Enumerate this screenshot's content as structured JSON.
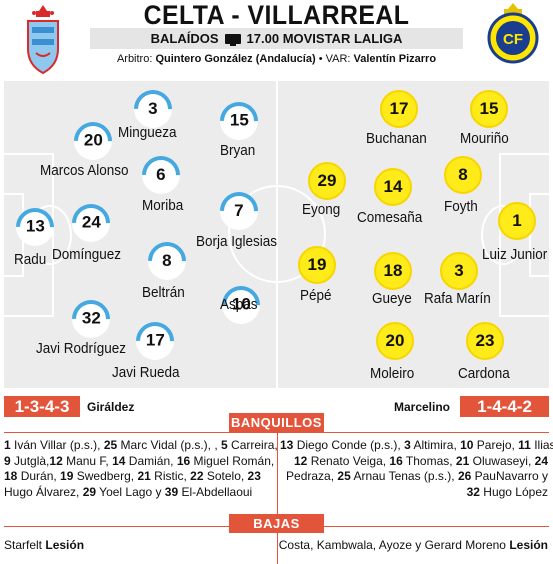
{
  "header": {
    "title": "CELTA - VILLARREAL",
    "venue": "BALAÍDOS",
    "broadcast": "17.00 MOVISTAR LALIGA",
    "referee_label": "Arbitro:",
    "referee_name": "Quintero González",
    "referee_region": "(Andalucía)",
    "var_label": "• VAR:",
    "var_name": "Valentín Pizarro"
  },
  "colors": {
    "home": "#46a8e0",
    "away": "#ffea1a",
    "accent": "#e3553b",
    "pitch": "#ececec"
  },
  "icons": {
    "home_crest": "celta-crest-icon",
    "away_crest": "villarreal-crest-icon",
    "tv": "tv-icon"
  },
  "home": {
    "formation": "1-3-4-3",
    "coach": "Giráldez",
    "players": [
      {
        "number": "3",
        "name": "Mingueza"
      },
      {
        "number": "15",
        "name": "Bryan"
      },
      {
        "number": "20",
        "name": "Marcos Alonso"
      },
      {
        "number": "6",
        "name": "Moriba"
      },
      {
        "number": "13",
        "name": "Radu"
      },
      {
        "number": "24",
        "name": "Domínguez"
      },
      {
        "number": "7",
        "name": "Borja Iglesias"
      },
      {
        "number": "8",
        "name": "Beltrán"
      },
      {
        "number": "10",
        "name": "Aspas"
      },
      {
        "number": "32",
        "name": "Javi Rodríguez"
      },
      {
        "number": "17",
        "name": "Javi Rueda"
      }
    ]
  },
  "away": {
    "formation": "1-4-4-2",
    "coach": "Marcelino",
    "players": [
      {
        "number": "17",
        "name": "Buchanan"
      },
      {
        "number": "15",
        "name": "Mouriño"
      },
      {
        "number": "29",
        "name": "Eyong"
      },
      {
        "number": "14",
        "name": "Comesaña"
      },
      {
        "number": "8",
        "name": "Foyth"
      },
      {
        "number": "1",
        "name": "Luiz Junior"
      },
      {
        "number": "19",
        "name": "Pépé"
      },
      {
        "number": "18",
        "name": "Gueye"
      },
      {
        "number": "3",
        "name": "Rafa Marín"
      },
      {
        "number": "20",
        "name": "Moleiro"
      },
      {
        "number": "23",
        "name": "Cardona"
      }
    ]
  },
  "sections": {
    "bench_title": "BANQUILLOS",
    "absences_title": "BAJAS"
  },
  "bench": {
    "home_lines": [
      [
        [
          "1",
          " Iván Villar (p.s.), "
        ],
        [
          "25",
          " Marc Vidal (p.s.), , "
        ],
        [
          "5",
          " Carreira,"
        ]
      ],
      [
        [
          "9",
          " Jutglà,"
        ],
        [
          "12",
          " Manu F, "
        ],
        [
          "14",
          " Damián, "
        ],
        [
          "16",
          " Miguel Román,"
        ]
      ],
      [
        [
          "18",
          " Durán, "
        ],
        [
          "19",
          " Swedberg, "
        ],
        [
          "21",
          " Ristic, "
        ],
        [
          "22",
          " Sotelo, "
        ],
        [
          "23",
          ""
        ]
      ],
      [
        [
          "",
          "Hugo Álvarez, "
        ],
        [
          "29",
          " Yoel Lago y "
        ],
        [
          "39",
          " El-Abdellaoui"
        ]
      ]
    ],
    "away_lines": [
      [
        [
          "13",
          " Diego Conde (p.s.), "
        ],
        [
          "3",
          " Altimira, "
        ],
        [
          "10",
          " Parejo, "
        ],
        [
          "11",
          " Ilias,"
        ]
      ],
      [
        [
          "12",
          " Renato Veiga, "
        ],
        [
          "16",
          " Thomas, "
        ],
        [
          "21",
          " Oluwaseyi, "
        ],
        [
          "24",
          ""
        ]
      ],
      [
        [
          "",
          "Pedraza, "
        ],
        [
          "25",
          " Arnau Tenas (p.s.), "
        ],
        [
          "26",
          " PauNavarro y"
        ]
      ],
      [
        [
          "32",
          " Hugo López"
        ]
      ]
    ]
  },
  "absences": {
    "home_names": "Starfelt",
    "home_reason": "Lesión",
    "away_names": "Costa, Kambwala, Ayoze y Gerard Moreno",
    "away_reason": "Lesión"
  }
}
